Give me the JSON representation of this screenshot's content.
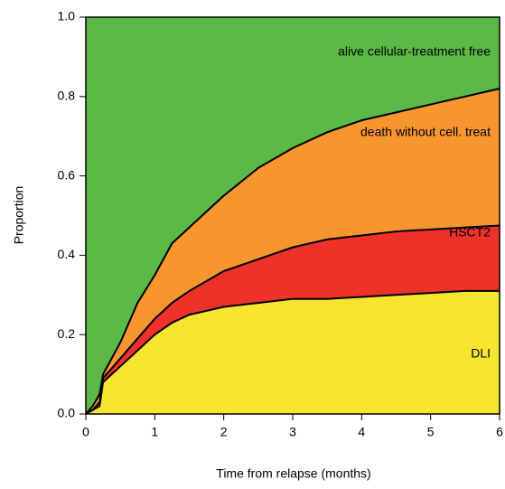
{
  "chart_data": {
    "type": "stacked-area",
    "xlabel": "Time from relapse (months)",
    "ylabel": "Proportion",
    "x": [
      0,
      0.1,
      0.2,
      0.25,
      0.5,
      0.75,
      1,
      1.25,
      1.5,
      2,
      2.5,
      3,
      3.5,
      4,
      4.5,
      5,
      5.5,
      6
    ],
    "series": [
      {
        "name": "DLI",
        "color": "#f7e62d",
        "values": [
          0,
          0.01,
          0.02,
          0.08,
          0.12,
          0.16,
          0.2,
          0.23,
          0.25,
          0.27,
          0.28,
          0.29,
          0.29,
          0.295,
          0.3,
          0.305,
          0.31,
          0.31
        ]
      },
      {
        "name": "HSCT2",
        "color": "#ee3129",
        "values": [
          0,
          0,
          0.01,
          0.01,
          0.02,
          0.03,
          0.04,
          0.05,
          0.06,
          0.09,
          0.11,
          0.13,
          0.15,
          0.155,
          0.16,
          0.16,
          0.16,
          0.165
        ]
      },
      {
        "name": "death without cell. treat",
        "color": "#f7962e",
        "values": [
          0,
          0.01,
          0.02,
          0.01,
          0.04,
          0.09,
          0.11,
          0.15,
          0.16,
          0.19,
          0.23,
          0.25,
          0.27,
          0.29,
          0.3,
          0.315,
          0.33,
          0.345
        ]
      },
      {
        "name": "alive cellular-treatment free",
        "color": "#5cb847",
        "values": [
          1,
          0.98,
          0.95,
          0.9,
          0.82,
          0.72,
          0.65,
          0.57,
          0.53,
          0.45,
          0.38,
          0.33,
          0.29,
          0.26,
          0.24,
          0.22,
          0.2,
          0.18
        ]
      }
    ],
    "xlim": [
      0,
      6
    ],
    "xticks": [
      0,
      1,
      2,
      3,
      4,
      5,
      6
    ],
    "ylim": [
      0,
      1
    ],
    "yticks": [
      {
        "value": 0,
        "label": "0.0"
      },
      0.2,
      0.4,
      0.6,
      0.8,
      {
        "value": 1,
        "label": "1.0"
      }
    ]
  }
}
